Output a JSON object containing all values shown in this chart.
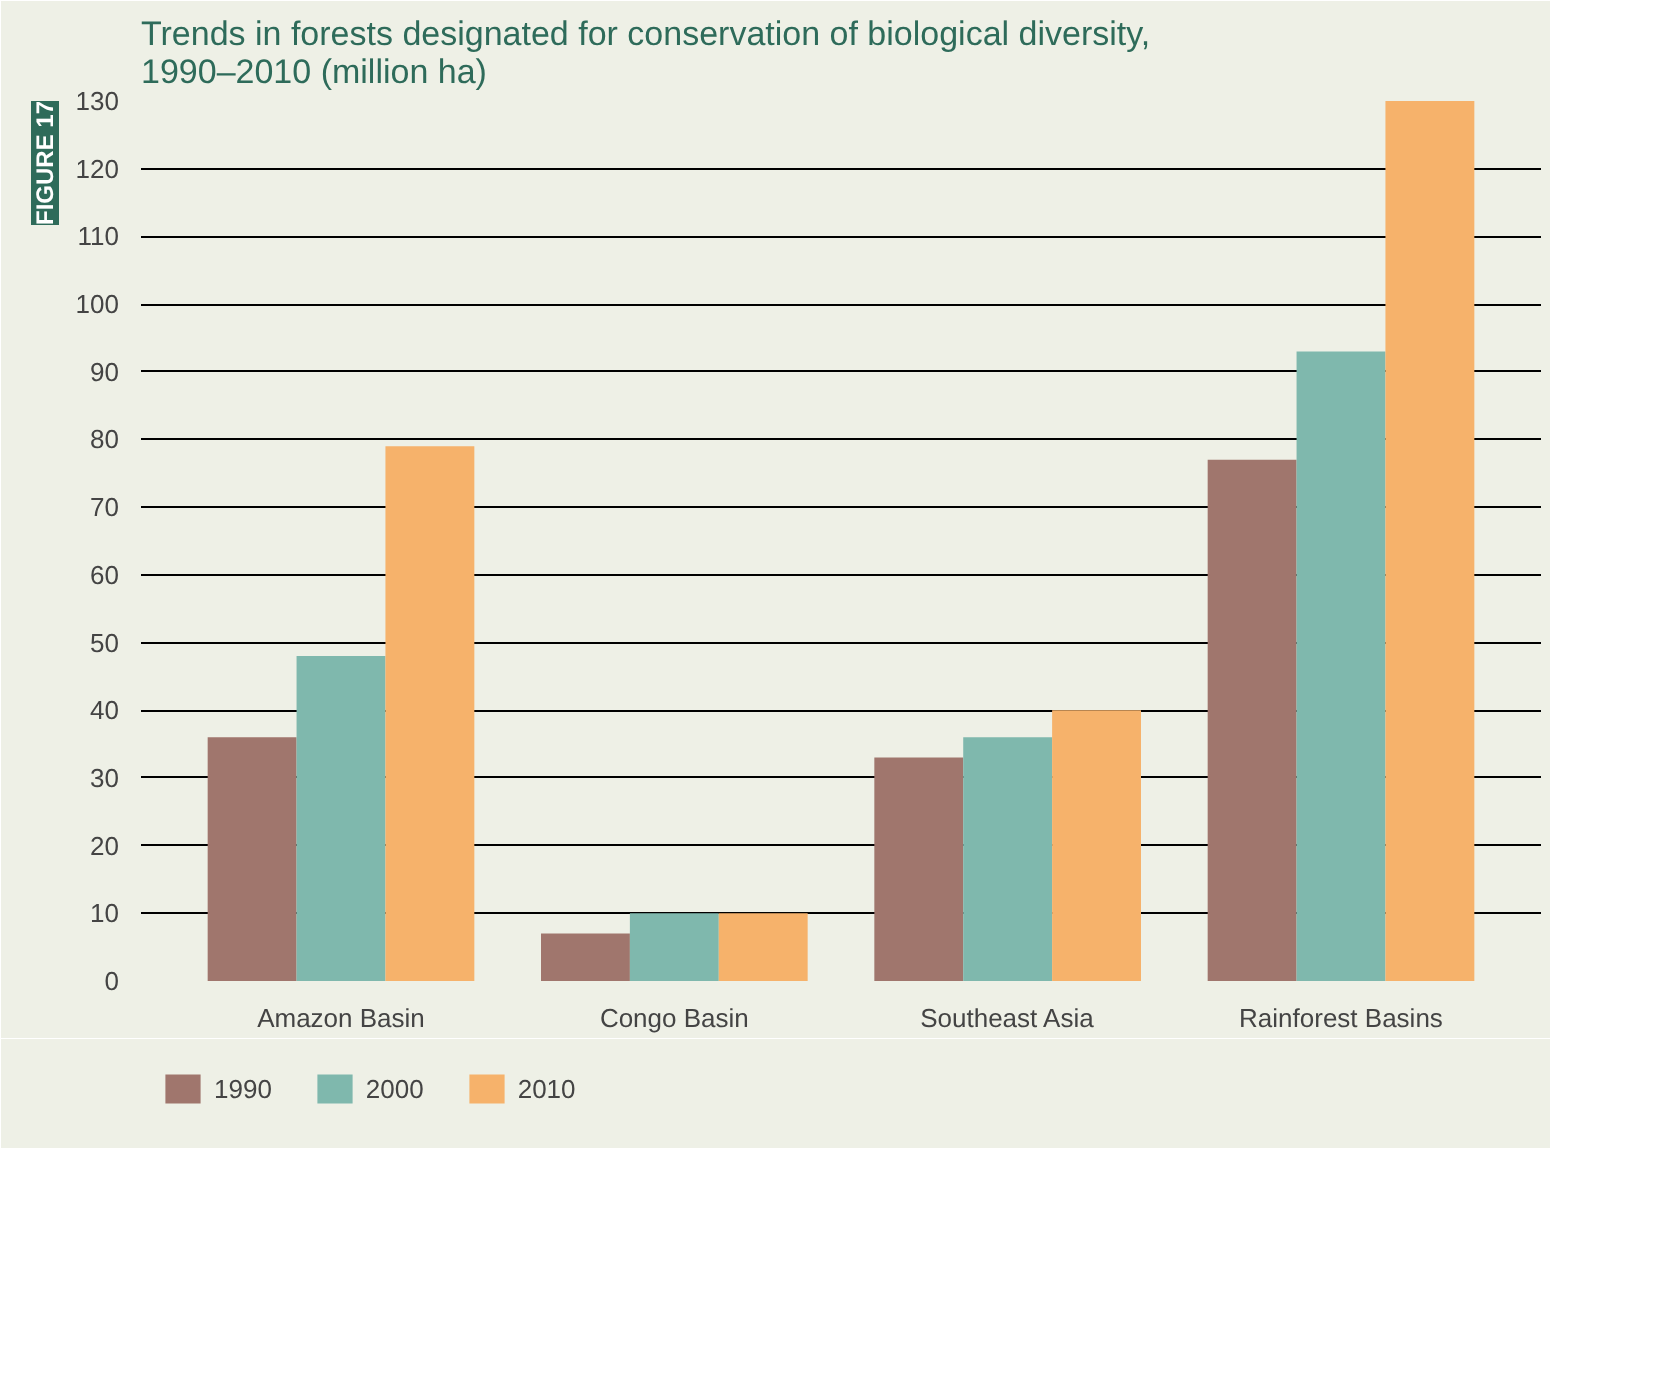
{
  "chart_data": {
    "type": "bar",
    "title": "Trends in forests designated for conservation of biological diversity, 1990–2010 (million ha)",
    "annotations": [
      "FIGURE 17"
    ],
    "categories": [
      "Amazon Basin",
      "Congo Basin",
      "Southeast Asia",
      "Rainforest Basins"
    ],
    "series": [
      {
        "name": "1990",
        "color": "#a0766d",
        "values": [
          36,
          7,
          33,
          77
        ]
      },
      {
        "name": "2000",
        "color": "#7fb8ad",
        "values": [
          48,
          10,
          36,
          93
        ]
      },
      {
        "name": "2010",
        "color": "#f6b26b",
        "values": [
          79,
          10,
          40,
          130
        ]
      }
    ],
    "ylim": [
      0,
      130
    ],
    "yticks": [
      0,
      10,
      20,
      30,
      40,
      50,
      60,
      70,
      80,
      90,
      100,
      110,
      120,
      130
    ],
    "grid": "y",
    "legend": "bottom"
  }
}
